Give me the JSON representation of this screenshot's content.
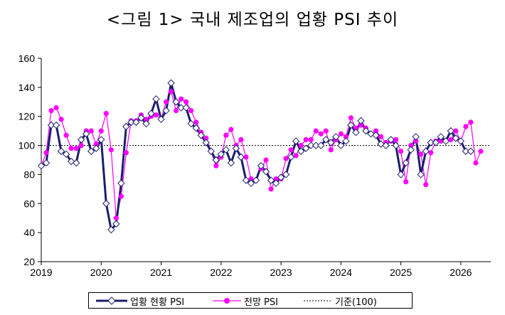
{
  "chart_data": {
    "type": "line",
    "title": "<그림 1> 국내 제조업의 업황 PSI 추이",
    "ylim": [
      20,
      160
    ],
    "yticks": [
      "20",
      "40",
      "60",
      "80",
      "100",
      "120",
      "140",
      "160"
    ],
    "xticks": [
      "2019",
      "2020",
      "2021",
      "2022",
      "2023",
      "2024",
      "2025",
      "2026"
    ],
    "x_start": "2019-01",
    "grid": false,
    "legend_position": "bottom",
    "series": [
      {
        "name": "업황 현황 PSI",
        "color": "#1c1c6e",
        "values": [
          86,
          88,
          114,
          114,
          96,
          94,
          89,
          88,
          104,
          108,
          96,
          98,
          104,
          60,
          42,
          46,
          74,
          113,
          116,
          116,
          119,
          115,
          122,
          132,
          118,
          124,
          143,
          130,
          126,
          126,
          115,
          112,
          107,
          102,
          96,
          90,
          94,
          97,
          88,
          98,
          92,
          76,
          74,
          76,
          86,
          82,
          76,
          74,
          78,
          80,
          92,
          103,
          96,
          98,
          100,
          100,
          100,
          104,
          102,
          106,
          100,
          103,
          114,
          109,
          117,
          110,
          108,
          107,
          101,
          100,
          104,
          100,
          80,
          88,
          97,
          106,
          80,
          96,
          102,
          102,
          106,
          103,
          110,
          105,
          103,
          96,
          96
        ],
        "marker": "diamond"
      },
      {
        "name": "전망 PSI",
        "color": "#ff00ff",
        "values": [
          86,
          95,
          124,
          126,
          118,
          107,
          98,
          98,
          100,
          110,
          110,
          101,
          110,
          122,
          97,
          50,
          65,
          95,
          117,
          117,
          121,
          118,
          120,
          121,
          118,
          130,
          137,
          124,
          132,
          130,
          124,
          116,
          109,
          105,
          96,
          86,
          92,
          107,
          111,
          100,
          104,
          92,
          77,
          76,
          84,
          90,
          70,
          77,
          77,
          91,
          97,
          93,
          100,
          104,
          104,
          110,
          108,
          110,
          97,
          104,
          108,
          106,
          119,
          112,
          114,
          112,
          108,
          110,
          106,
          102,
          103,
          104,
          96,
          75,
          100,
          103,
          94,
          73,
          95,
          103,
          103,
          103,
          104,
          110,
          103,
          113,
          116,
          88,
          96
        ],
        "marker": "circle"
      },
      {
        "name": "기준(100)",
        "color": "#000000",
        "values": [
          100,
          100
        ],
        "style": "dotted"
      }
    ]
  }
}
